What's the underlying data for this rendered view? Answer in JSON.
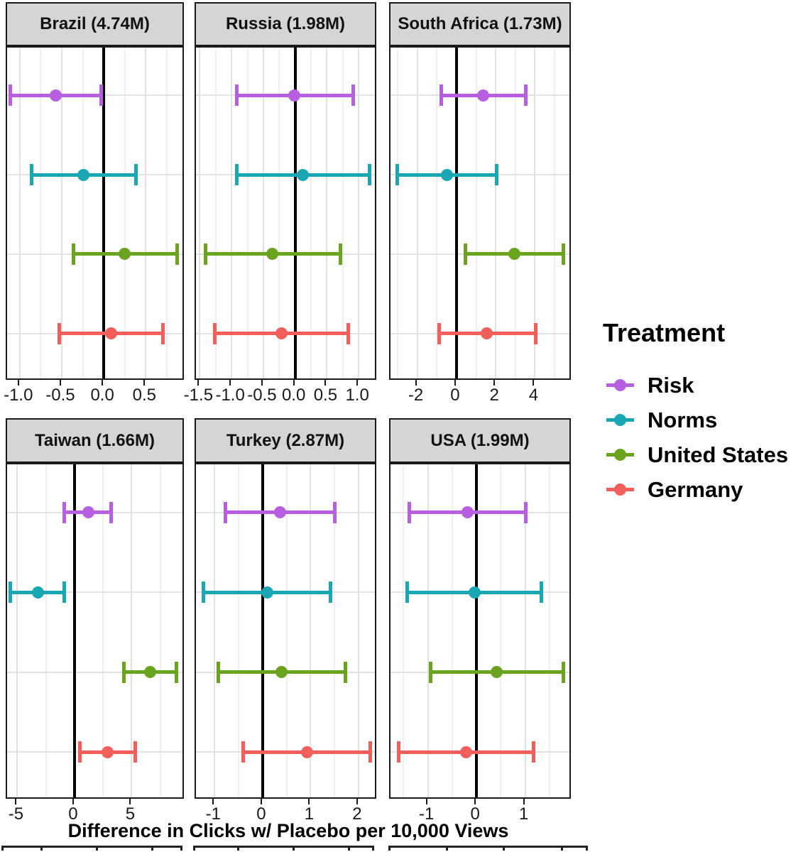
{
  "chart_data": {
    "type": "errorbar",
    "xlabel": "Difference in Clicks w/ Placebo per 10,000 Views",
    "legend": {
      "title": "Treatment",
      "position": "right"
    },
    "treatments": [
      {
        "name": "Risk",
        "color": "#b75fe0"
      },
      {
        "name": "Norms",
        "color": "#18a7b3"
      },
      {
        "name": "United States",
        "color": "#6aa41f"
      },
      {
        "name": "Germany",
        "color": "#f25e5a"
      }
    ],
    "zero_reference_line": 0,
    "grid": true,
    "facets": [
      {
        "label": "Brazil (4.74M)",
        "row": 0,
        "col": 0,
        "xlim": [
          -1.15,
          0.97
        ],
        "ticks": {
          "major": [
            -1.0,
            -0.5,
            0.0,
            0.5
          ],
          "labels": [
            "-1.0",
            "-0.5",
            "0.0",
            "0.5"
          ],
          "minor": [
            -0.75,
            -0.25,
            0.25,
            0.75
          ]
        },
        "estimates": [
          {
            "treatment": "Risk",
            "center": -0.57,
            "low": -1.11,
            "high": -0.03
          },
          {
            "treatment": "Norms",
            "center": -0.24,
            "low": -0.86,
            "high": 0.38
          },
          {
            "treatment": "United States",
            "center": 0.25,
            "low": -0.36,
            "high": 0.87
          },
          {
            "treatment": "Germany",
            "center": 0.09,
            "low": -0.53,
            "high": 0.7
          }
        ]
      },
      {
        "label": "Russia (1.98M)",
        "row": 0,
        "col": 1,
        "xlim": [
          -1.56,
          1.3
        ],
        "ticks": {
          "major": [
            -1.5,
            -1.0,
            -0.5,
            0.0,
            0.5,
            1.0
          ],
          "labels": [
            "-1.5",
            "-1.0",
            "-0.5",
            "0.0",
            "0.5",
            "1.0"
          ],
          "minor": [
            -1.25,
            -0.75,
            -0.25,
            0.25,
            0.75,
            1.25
          ]
        },
        "estimates": [
          {
            "treatment": "Risk",
            "center": -0.01,
            "low": -0.92,
            "high": 0.91
          },
          {
            "treatment": "Norms",
            "center": 0.12,
            "low": -0.92,
            "high": 1.17
          },
          {
            "treatment": "United States",
            "center": -0.36,
            "low": -1.41,
            "high": 0.71
          },
          {
            "treatment": "Germany",
            "center": -0.21,
            "low": -1.26,
            "high": 0.84
          }
        ]
      },
      {
        "label": "South Africa (1.73M)",
        "row": 0,
        "col": 2,
        "xlim": [
          -3.36,
          5.9
        ],
        "ticks": {
          "major": [
            -2,
            0,
            2,
            4
          ],
          "labels": [
            "-2",
            "0",
            "2",
            "4"
          ],
          "minor": [
            -3,
            -1,
            1,
            3,
            5
          ]
        },
        "estimates": [
          {
            "treatment": "Risk",
            "center": 1.37,
            "low": -0.79,
            "high": 3.54
          },
          {
            "treatment": "Norms",
            "center": -0.5,
            "low": -3.0,
            "high": 2.06
          },
          {
            "treatment": "United States",
            "center": 2.96,
            "low": 0.47,
            "high": 5.45
          },
          {
            "treatment": "Germany",
            "center": 1.55,
            "low": -0.9,
            "high": 4.04
          }
        ]
      },
      {
        "label": "Taiwan (1.66M)",
        "row": 1,
        "col": 0,
        "xlim": [
          -5.9,
          9.7
        ],
        "ticks": {
          "major": [
            -5,
            0,
            5
          ],
          "labels": [
            "-5",
            "0",
            "5"
          ],
          "minor": [
            -2.5,
            2.5,
            7.5
          ]
        },
        "estimates": [
          {
            "treatment": "Risk",
            "center": 1.2,
            "low": -0.9,
            "high": 3.2
          },
          {
            "treatment": "Norms",
            "center": -3.2,
            "low": -5.6,
            "high": -0.9
          },
          {
            "treatment": "United States",
            "center": 6.6,
            "low": 4.3,
            "high": 8.9
          },
          {
            "treatment": "Germany",
            "center": 2.9,
            "low": 0.5,
            "high": 5.3
          }
        ]
      },
      {
        "label": "Turkey (2.87M)",
        "row": 1,
        "col": 1,
        "xlim": [
          -1.39,
          2.4
        ],
        "ticks": {
          "major": [
            -1,
            0,
            1,
            2
          ],
          "labels": [
            "-1",
            "0",
            "1",
            "2"
          ],
          "minor": [
            -0.5,
            0.5,
            1.5
          ]
        },
        "estimates": [
          {
            "treatment": "Risk",
            "center": 0.37,
            "low": -0.77,
            "high": 1.5
          },
          {
            "treatment": "Norms",
            "center": 0.1,
            "low": -1.23,
            "high": 1.41
          },
          {
            "treatment": "United States",
            "center": 0.4,
            "low": -0.92,
            "high": 1.73
          },
          {
            "treatment": "Germany",
            "center": 0.92,
            "low": -0.4,
            "high": 2.24
          }
        ]
      },
      {
        "label": "USA (1.99M)",
        "row": 1,
        "col": 2,
        "xlim": [
          -1.77,
          1.97
        ],
        "ticks": {
          "major": [
            -1,
            0,
            1
          ],
          "labels": [
            "-1",
            "0",
            "1"
          ],
          "minor": [
            -1.5,
            -0.5,
            0.5,
            1.5
          ]
        },
        "estimates": [
          {
            "treatment": "Risk",
            "center": -0.18,
            "low": -1.38,
            "high": 1.01
          },
          {
            "treatment": "Norms",
            "center": -0.04,
            "low": -1.42,
            "high": 1.34
          },
          {
            "treatment": "United States",
            "center": 0.41,
            "low": -0.95,
            "high": 1.79
          },
          {
            "treatment": "Germany",
            "center": -0.22,
            "low": -1.6,
            "high": 1.17
          }
        ]
      }
    ]
  }
}
